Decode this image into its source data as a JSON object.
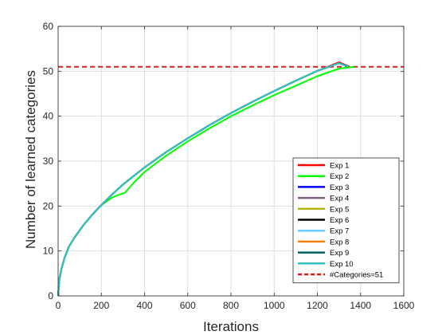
{
  "chart_data": {
    "type": "line",
    "title": "",
    "xlabel": "Iterations",
    "ylabel": "Number of learned categories",
    "xlim": [
      0,
      1600
    ],
    "ylim": [
      0,
      60
    ],
    "xticks": [
      0,
      200,
      400,
      600,
      800,
      1000,
      1200,
      1400,
      1600
    ],
    "yticks": [
      0,
      10,
      20,
      30,
      40,
      50,
      60
    ],
    "grid": true,
    "legend_position": "bottom-right",
    "series": [
      {
        "name": "Exp 1",
        "color": "#ff0000",
        "x": [
          0,
          5,
          15,
          30,
          50,
          80,
          120,
          160,
          200,
          250,
          300,
          400,
          500,
          600,
          700,
          800,
          900,
          1000,
          1100,
          1200,
          1300,
          1350
        ],
        "y": [
          0,
          3.5,
          6,
          8.5,
          11,
          13.3,
          15.9,
          18.2,
          20.2,
          22.6,
          24.8,
          28.6,
          32,
          35.1,
          38,
          40.7,
          43.2,
          45.6,
          47.9,
          50.1,
          52,
          51
        ]
      },
      {
        "name": "Exp 2",
        "color": "#00ff00",
        "x": [
          0,
          5,
          15,
          30,
          50,
          80,
          120,
          160,
          200,
          250,
          280,
          310,
          350,
          400,
          500,
          600,
          700,
          800,
          900,
          1000,
          1100,
          1200,
          1300,
          1370
        ],
        "y": [
          0,
          3.5,
          6,
          8.5,
          11,
          13.3,
          15.9,
          18.2,
          20.2,
          21.9,
          22.5,
          23,
          25.2,
          27.6,
          31.2,
          34.4,
          37.3,
          40,
          42.4,
          44.7,
          46.8,
          48.9,
          50.6,
          51
        ]
      },
      {
        "name": "Exp 3",
        "color": "#0000ff",
        "x": [
          0,
          5,
          15,
          30,
          50,
          80,
          120,
          160,
          200,
          250,
          300,
          400,
          500,
          600,
          700,
          800,
          900,
          1000,
          1100,
          1200,
          1300,
          1345
        ],
        "y": [
          0,
          3.5,
          6,
          8.5,
          11,
          13.3,
          15.9,
          18.2,
          20.2,
          22.6,
          24.8,
          28.6,
          32,
          35.1,
          38,
          40.7,
          43.2,
          45.6,
          47.9,
          50.1,
          51.8,
          51
        ]
      },
      {
        "name": "Exp 4",
        "color": "#7f5f7f",
        "x": [
          0,
          5,
          15,
          30,
          50,
          80,
          120,
          160,
          200,
          250,
          300,
          400,
          500,
          600,
          700,
          800,
          900,
          1000,
          1100,
          1200,
          1300,
          1345
        ],
        "y": [
          0,
          3.5,
          6,
          8.5,
          11,
          13.3,
          15.9,
          18.2,
          20.2,
          22.6,
          24.8,
          28.6,
          32,
          35.1,
          38,
          40.7,
          43.2,
          45.6,
          47.9,
          50.1,
          51.8,
          51
        ]
      },
      {
        "name": "Exp 5",
        "color": "#b5b500",
        "x": [
          0,
          5,
          15,
          30,
          50,
          80,
          120,
          160,
          200,
          250,
          300,
          400,
          500,
          600,
          700,
          800,
          900,
          1000,
          1100,
          1200,
          1300,
          1345
        ],
        "y": [
          0,
          3.5,
          6,
          8.5,
          11,
          13.3,
          15.9,
          18.2,
          20.2,
          22.6,
          24.8,
          28.6,
          32,
          35.1,
          38,
          40.7,
          43.2,
          45.6,
          47.9,
          50.1,
          51.8,
          51
        ]
      },
      {
        "name": "Exp 6",
        "color": "#000000",
        "x": [
          0,
          5,
          15,
          30,
          50,
          80,
          120,
          160,
          200,
          250,
          300,
          400,
          500,
          600,
          700,
          800,
          900,
          1000,
          1100,
          1200,
          1300,
          1345
        ],
        "y": [
          0,
          3.5,
          6,
          8.5,
          11,
          13.3,
          15.9,
          18.2,
          20.2,
          22.6,
          24.8,
          28.6,
          32,
          35.1,
          38,
          40.7,
          43.2,
          45.6,
          47.9,
          50.1,
          51.8,
          51
        ]
      },
      {
        "name": "Exp 7",
        "color": "#66ccff",
        "x": [
          0,
          5,
          15,
          30,
          50,
          80,
          120,
          160,
          200,
          250,
          300,
          400,
          500,
          600,
          700,
          800,
          900,
          1000,
          1100,
          1200,
          1300,
          1345
        ],
        "y": [
          0,
          3.5,
          6,
          8.5,
          11,
          13.3,
          15.9,
          18.2,
          20.2,
          22.6,
          24.8,
          28.6,
          32,
          35.1,
          38,
          40.7,
          43.2,
          45.6,
          47.9,
          50.1,
          51.8,
          51
        ]
      },
      {
        "name": "Exp 8",
        "color": "#ff8000",
        "x": [
          0,
          5,
          15,
          30,
          50,
          80,
          120,
          160,
          200,
          250,
          300,
          400,
          500,
          600,
          700,
          800,
          900,
          1000,
          1100,
          1200,
          1300,
          1345
        ],
        "y": [
          0,
          3.5,
          6,
          8.5,
          11,
          13.3,
          15.9,
          18.2,
          20.2,
          22.6,
          24.8,
          28.6,
          32,
          35.1,
          38,
          40.7,
          43.2,
          45.6,
          47.9,
          50.1,
          51.8,
          51
        ]
      },
      {
        "name": "Exp 9",
        "color": "#006060",
        "x": [
          0,
          5,
          15,
          30,
          50,
          80,
          120,
          160,
          200,
          250,
          300,
          400,
          500,
          600,
          700,
          800,
          900,
          1000,
          1100,
          1200,
          1300,
          1345
        ],
        "y": [
          0,
          3.5,
          6,
          8.5,
          11,
          13.3,
          15.9,
          18.2,
          20.2,
          22.6,
          24.8,
          28.6,
          32,
          35.1,
          38,
          40.7,
          43.2,
          45.6,
          47.9,
          50.1,
          51.8,
          51
        ]
      },
      {
        "name": "Exp 10",
        "color": "#2ec4c4",
        "x": [
          0,
          5,
          15,
          30,
          50,
          80,
          120,
          160,
          200,
          250,
          300,
          400,
          500,
          600,
          700,
          800,
          900,
          1000,
          1100,
          1200,
          1300,
          1345
        ],
        "y": [
          0,
          3.5,
          6,
          8.5,
          11,
          13.3,
          15.9,
          18.2,
          20.2,
          22.6,
          24.8,
          28.6,
          32,
          35.1,
          38,
          40.7,
          43.2,
          45.6,
          47.9,
          50.1,
          51.8,
          51
        ]
      }
    ],
    "reference_line": {
      "name": "#Categories=51",
      "y": 51,
      "color": "#d62020",
      "style": "dashed"
    }
  }
}
